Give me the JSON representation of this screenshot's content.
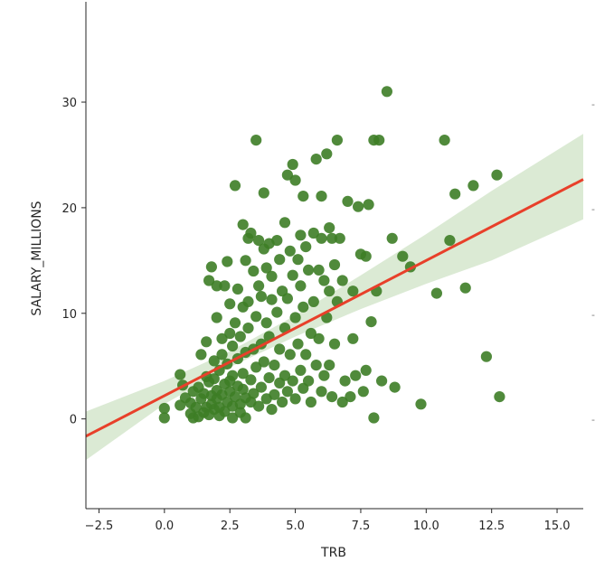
{
  "chart_data": {
    "type": "scatter",
    "title": "",
    "xlabel": "TRB",
    "ylabel": "SALARY_MILLIONS",
    "xlim": [
      -3.0,
      16.0
    ],
    "ylim": [
      -8.5,
      39.5
    ],
    "xticks": [
      -2.5,
      0.0,
      2.5,
      5.0,
      7.5,
      10.0,
      12.5,
      15.0
    ],
    "xtick_labels": [
      "−2.5",
      "0.0",
      "2.5",
      "5.0",
      "7.5",
      "10.0",
      "12.5",
      "15.0"
    ],
    "yticks": [
      0,
      10,
      20,
      30
    ],
    "ytick_labels": [
      "0",
      "10",
      "20",
      "30"
    ],
    "grid": false,
    "legend": "none",
    "colors": {
      "points": "#3d7d26",
      "regression_line": "#e8402a",
      "confidence_band": "#a9cc99"
    },
    "regression": {
      "slope": 1.28,
      "intercept": 2.2
    },
    "confidence_band": [
      {
        "x": -3.0,
        "lower": -3.9,
        "upper": 0.7
      },
      {
        "x": 0.0,
        "lower": 1.4,
        "upper": 3.6
      },
      {
        "x": 2.5,
        "lower": 4.9,
        "upper": 6.4
      },
      {
        "x": 5.0,
        "lower": 7.8,
        "upper": 9.8
      },
      {
        "x": 7.5,
        "lower": 10.4,
        "upper": 13.6
      },
      {
        "x": 10.0,
        "lower": 12.8,
        "upper": 17.5
      },
      {
        "x": 12.5,
        "lower": 15.0,
        "upper": 21.6
      },
      {
        "x": 16.0,
        "lower": 18.9,
        "upper": 27.0
      }
    ],
    "points": [
      [
        0.0,
        1.0
      ],
      [
        0.0,
        0.1
      ],
      [
        0.6,
        4.2
      ],
      [
        0.6,
        1.3
      ],
      [
        0.7,
        3.2
      ],
      [
        0.8,
        2.0
      ],
      [
        1.0,
        0.5
      ],
      [
        1.0,
        1.5
      ],
      [
        1.1,
        2.6
      ],
      [
        1.1,
        0.1
      ],
      [
        1.2,
        1.1
      ],
      [
        1.3,
        0.2
      ],
      [
        1.3,
        3.0
      ],
      [
        1.4,
        1.9
      ],
      [
        1.4,
        6.1
      ],
      [
        1.5,
        0.6
      ],
      [
        1.5,
        2.4
      ],
      [
        1.6,
        1.1
      ],
      [
        1.6,
        7.3
      ],
      [
        1.6,
        4.0
      ],
      [
        1.7,
        13.1
      ],
      [
        1.7,
        3.5
      ],
      [
        1.7,
        0.4
      ],
      [
        1.8,
        2.2
      ],
      [
        1.8,
        1.4
      ],
      [
        1.8,
        14.4
      ],
      [
        1.9,
        5.5
      ],
      [
        1.9,
        0.9
      ],
      [
        1.9,
        3.8
      ],
      [
        2.0,
        9.6
      ],
      [
        2.0,
        2.7
      ],
      [
        2.0,
        1.9
      ],
      [
        2.0,
        12.6
      ],
      [
        2.1,
        0.3
      ],
      [
        2.1,
        4.6
      ],
      [
        2.1,
        1.1
      ],
      [
        2.2,
        6.1
      ],
      [
        2.2,
        2.3
      ],
      [
        2.2,
        7.6
      ],
      [
        2.3,
        3.3
      ],
      [
        2.3,
        0.7
      ],
      [
        2.3,
        12.6
      ],
      [
        2.4,
        14.9
      ],
      [
        2.4,
        5.2
      ],
      [
        2.4,
        1.6
      ],
      [
        2.5,
        3.6
      ],
      [
        2.5,
        8.1
      ],
      [
        2.5,
        10.9
      ],
      [
        2.5,
        2.6
      ],
      [
        2.6,
        6.9
      ],
      [
        2.6,
        0.1
      ],
      [
        2.6,
        1.2
      ],
      [
        2.6,
        4.1
      ],
      [
        2.7,
        22.1
      ],
      [
        2.7,
        9.1
      ],
      [
        2.7,
        2.1
      ],
      [
        2.8,
        3.1
      ],
      [
        2.8,
        5.7
      ],
      [
        2.8,
        12.3
      ],
      [
        2.9,
        7.8
      ],
      [
        2.9,
        1.4
      ],
      [
        2.9,
        0.6
      ],
      [
        3.0,
        18.4
      ],
      [
        3.0,
        10.6
      ],
      [
        3.0,
        4.3
      ],
      [
        3.0,
        2.8
      ],
      [
        3.1,
        6.3
      ],
      [
        3.1,
        15.0
      ],
      [
        3.1,
        2.0
      ],
      [
        3.1,
        0.1
      ],
      [
        3.2,
        17.1
      ],
      [
        3.2,
        11.1
      ],
      [
        3.2,
        8.6
      ],
      [
        3.3,
        3.7
      ],
      [
        3.3,
        1.6
      ],
      [
        3.3,
        17.6
      ],
      [
        3.4,
        6.6
      ],
      [
        3.4,
        14.0
      ],
      [
        3.4,
        2.4
      ],
      [
        3.5,
        26.4
      ],
      [
        3.5,
        9.7
      ],
      [
        3.5,
        4.9
      ],
      [
        3.6,
        16.9
      ],
      [
        3.6,
        1.2
      ],
      [
        3.6,
        12.6
      ],
      [
        3.7,
        7.1
      ],
      [
        3.7,
        3.0
      ],
      [
        3.7,
        11.6
      ],
      [
        3.8,
        21.4
      ],
      [
        3.8,
        16.1
      ],
      [
        3.8,
        5.4
      ],
      [
        3.9,
        1.9
      ],
      [
        3.9,
        14.3
      ],
      [
        3.9,
        9.1
      ],
      [
        4.0,
        16.6
      ],
      [
        4.0,
        3.9
      ],
      [
        4.0,
        7.8
      ],
      [
        4.1,
        11.3
      ],
      [
        4.1,
        0.9
      ],
      [
        4.1,
        13.5
      ],
      [
        4.2,
        5.1
      ],
      [
        4.2,
        2.3
      ],
      [
        4.3,
        16.9
      ],
      [
        4.3,
        10.1
      ],
      [
        4.4,
        15.1
      ],
      [
        4.4,
        6.6
      ],
      [
        4.4,
        3.4
      ],
      [
        4.5,
        12.1
      ],
      [
        4.5,
        1.6
      ],
      [
        4.6,
        18.6
      ],
      [
        4.6,
        8.6
      ],
      [
        4.6,
        4.1
      ],
      [
        4.7,
        23.1
      ],
      [
        4.7,
        11.4
      ],
      [
        4.7,
        2.6
      ],
      [
        4.8,
        15.9
      ],
      [
        4.8,
        6.1
      ],
      [
        4.9,
        24.1
      ],
      [
        4.9,
        13.6
      ],
      [
        4.9,
        3.6
      ],
      [
        5.0,
        22.6
      ],
      [
        5.0,
        9.6
      ],
      [
        5.0,
        1.9
      ],
      [
        5.1,
        15.1
      ],
      [
        5.1,
        7.1
      ],
      [
        5.2,
        17.4
      ],
      [
        5.2,
        12.6
      ],
      [
        5.2,
        4.6
      ],
      [
        5.3,
        21.1
      ],
      [
        5.3,
        10.6
      ],
      [
        5.3,
        2.9
      ],
      [
        5.4,
        16.3
      ],
      [
        5.4,
        6.1
      ],
      [
        5.5,
        14.1
      ],
      [
        5.5,
        3.6
      ],
      [
        5.6,
        8.1
      ],
      [
        5.6,
        1.6
      ],
      [
        5.7,
        17.6
      ],
      [
        5.7,
        11.1
      ],
      [
        5.8,
        24.6
      ],
      [
        5.8,
        5.1
      ],
      [
        5.9,
        14.1
      ],
      [
        5.9,
        7.6
      ],
      [
        6.0,
        21.1
      ],
      [
        6.0,
        2.6
      ],
      [
        6.0,
        17.1
      ],
      [
        6.1,
        13.1
      ],
      [
        6.1,
        4.1
      ],
      [
        6.2,
        25.1
      ],
      [
        6.2,
        9.6
      ],
      [
        6.3,
        18.1
      ],
      [
        6.3,
        12.1
      ],
      [
        6.3,
        5.1
      ],
      [
        6.4,
        17.1
      ],
      [
        6.4,
        2.1
      ],
      [
        6.5,
        14.6
      ],
      [
        6.5,
        7.1
      ],
      [
        6.6,
        26.4
      ],
      [
        6.6,
        11.1
      ],
      [
        6.7,
        17.1
      ],
      [
        6.8,
        13.1
      ],
      [
        6.8,
        1.6
      ],
      [
        6.9,
        3.6
      ],
      [
        7.0,
        20.6
      ],
      [
        7.1,
        2.1
      ],
      [
        7.2,
        12.1
      ],
      [
        7.2,
        7.6
      ],
      [
        7.3,
        4.1
      ],
      [
        7.4,
        20.1
      ],
      [
        7.5,
        15.6
      ],
      [
        7.6,
        2.6
      ],
      [
        7.7,
        15.4
      ],
      [
        7.7,
        4.6
      ],
      [
        7.8,
        20.3
      ],
      [
        7.9,
        9.2
      ],
      [
        8.0,
        26.4
      ],
      [
        8.0,
        0.1
      ],
      [
        8.1,
        12.1
      ],
      [
        8.2,
        26.4
      ],
      [
        8.3,
        3.6
      ],
      [
        8.5,
        31.0
      ],
      [
        8.7,
        17.1
      ],
      [
        8.8,
        3.0
      ],
      [
        9.1,
        15.4
      ],
      [
        9.4,
        14.4
      ],
      [
        9.8,
        1.4
      ],
      [
        10.4,
        11.9
      ],
      [
        10.7,
        26.4
      ],
      [
        10.9,
        16.9
      ],
      [
        11.1,
        21.3
      ],
      [
        11.5,
        12.4
      ],
      [
        11.8,
        22.1
      ],
      [
        12.3,
        5.9
      ],
      [
        12.7,
        23.1
      ],
      [
        12.8,
        2.1
      ]
    ]
  }
}
